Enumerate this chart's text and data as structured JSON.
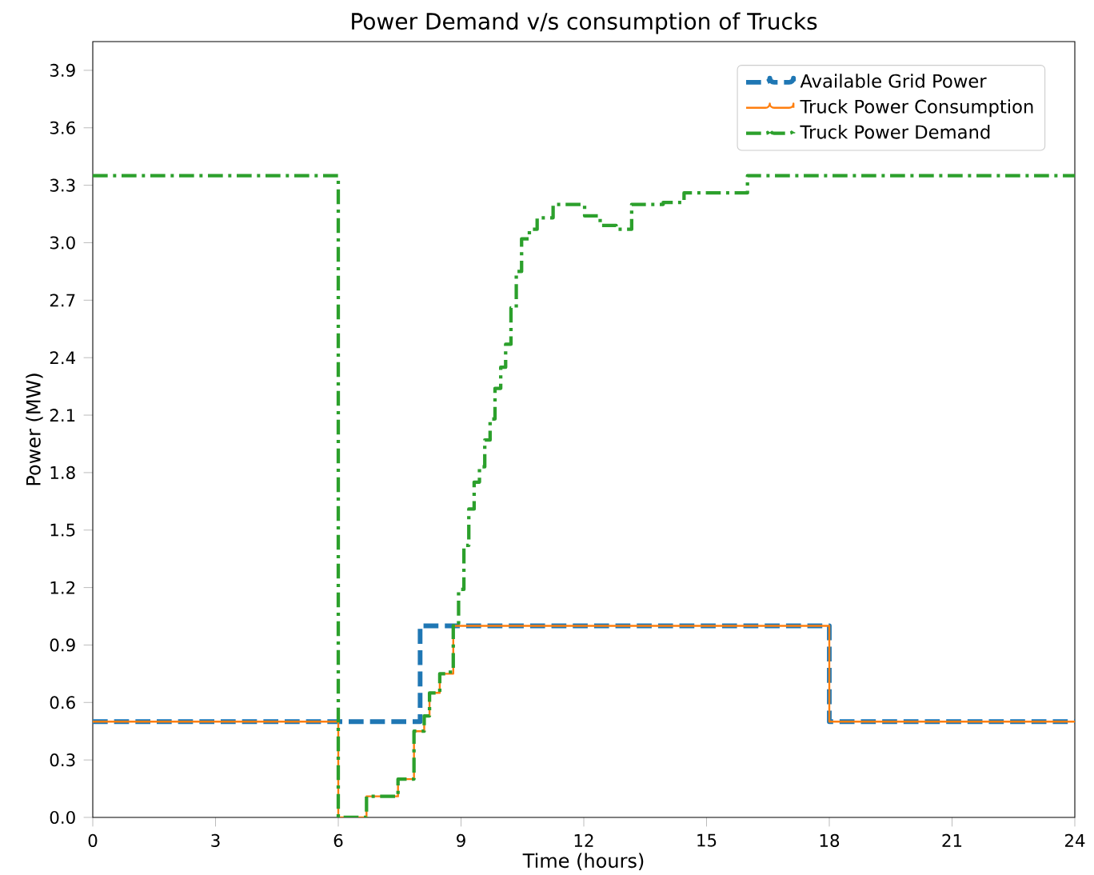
{
  "chart_data": {
    "type": "step",
    "title": "Power Demand v/s consumption of Trucks",
    "xlabel": "Time (hours)",
    "ylabel": "Power (MW)",
    "xlim": [
      0,
      24
    ],
    "ylim": [
      0,
      4.05
    ],
    "xticks": [
      0,
      3,
      6,
      9,
      12,
      15,
      18,
      21,
      24
    ],
    "yticks": [
      {
        "value": 0,
        "label": "0.0"
      },
      {
        "value": 0.3,
        "label": "0.3"
      },
      {
        "value": 0.6,
        "label": "0.6"
      },
      {
        "value": 0.9,
        "label": "0.9"
      },
      {
        "value": 1.2,
        "label": "1.2"
      },
      {
        "value": 1.5,
        "label": "1.5"
      },
      {
        "value": 1.8,
        "label": "1.8"
      },
      {
        "value": 2.1,
        "label": "2.1"
      },
      {
        "value": 2.4,
        "label": "2.4"
      },
      {
        "value": 2.7,
        "label": "2.7"
      },
      {
        "value": 3.0,
        "label": "3.0"
      },
      {
        "value": 3.3,
        "label": "3.3"
      },
      {
        "value": 3.6,
        "label": "3.6"
      },
      {
        "value": 3.9,
        "label": "3.9"
      }
    ],
    "legend": "top right",
    "grid": false,
    "series": [
      {
        "name": "Available Grid Power",
        "color": "#1f77b4",
        "line_style": "dashed",
        "x": [
          0,
          8,
          18,
          24
        ],
        "values": [
          0.5,
          1.0,
          0.5,
          0.5
        ]
      },
      {
        "name": "Truck Power Consumption",
        "color": "#ff7f0e",
        "line_style": "solid",
        "x": [
          0,
          6,
          6.69,
          7.46,
          7.5,
          7.85,
          8.1,
          8.23,
          8.48,
          8.81,
          18,
          24
        ],
        "values": [
          0.5,
          0,
          0.11,
          0.2,
          0.2,
          0.45,
          0.53,
          0.65,
          0.75,
          1.0,
          0.5,
          0.5
        ]
      },
      {
        "name": "Truck Power Demand",
        "color": "#2ca02c",
        "line_style": "dashdot",
        "x": [
          0,
          6,
          6.69,
          7.46,
          7.5,
          7.85,
          8.1,
          8.23,
          8.48,
          8.74,
          8.81,
          8.94,
          9.07,
          9.19,
          9.32,
          9.45,
          9.58,
          9.71,
          9.83,
          9.97,
          10.09,
          10.22,
          10.35,
          10.48,
          10.67,
          10.86,
          11.25,
          11.57,
          12.02,
          12.4,
          12.79,
          13.17,
          13.94,
          14.45,
          15.49,
          16.0,
          24
        ],
        "values": [
          3.35,
          0,
          0.11,
          0.2,
          0.2,
          0.45,
          0.53,
          0.65,
          0.75,
          0.78,
          1.0,
          1.19,
          1.42,
          1.61,
          1.75,
          1.83,
          1.97,
          2.08,
          2.24,
          2.35,
          2.47,
          2.66,
          2.85,
          3.02,
          3.07,
          3.13,
          3.2,
          3.2,
          3.14,
          3.09,
          3.07,
          3.2,
          3.21,
          3.26,
          3.26,
          3.35,
          3.35
        ]
      }
    ]
  }
}
